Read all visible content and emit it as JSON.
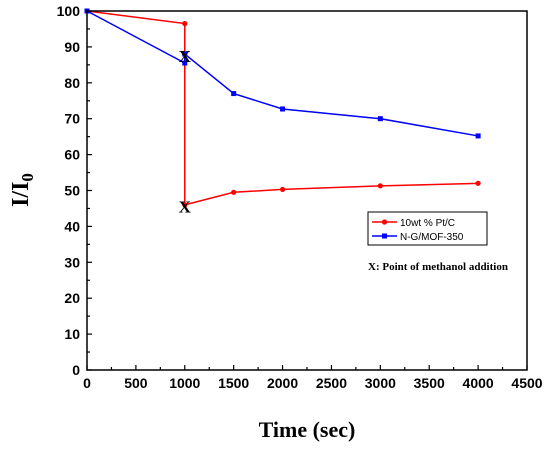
{
  "chart_data": {
    "type": "line",
    "xlabel": "Time (sec)",
    "ylabel_main": "I/I",
    "ylabel_sub": "0",
    "xlim": [
      0,
      4500
    ],
    "ylim": [
      0,
      100
    ],
    "xticks": [
      0,
      500,
      1000,
      1500,
      2000,
      2500,
      3000,
      3500,
      4000,
      4500
    ],
    "yticks": [
      0,
      10,
      20,
      30,
      40,
      50,
      60,
      70,
      80,
      90,
      100
    ],
    "legend_position": "right-middle",
    "series": [
      {
        "name": "10wt % Pt/C",
        "color": "#ff0000",
        "marker": "circle",
        "points": [
          [
            0,
            100
          ],
          [
            1000,
            96.5
          ],
          [
            1000,
            46
          ],
          [
            1500,
            49.5
          ],
          [
            2000,
            50.3
          ],
          [
            3000,
            51.3
          ],
          [
            4000,
            52
          ]
        ]
      },
      {
        "name": "N-G/MOF-350",
        "color": "#0000ff",
        "marker": "square",
        "points": [
          [
            0,
            100
          ],
          [
            1000,
            85.5
          ],
          [
            1000,
            88
          ],
          [
            1500,
            77
          ],
          [
            2000,
            72.7
          ],
          [
            3000,
            70
          ],
          [
            4000,
            65.2
          ]
        ]
      }
    ],
    "annotations": [
      {
        "text": "X",
        "x": 1000,
        "y": 87.5
      },
      {
        "text": "X",
        "x": 1000,
        "y": 45.5
      }
    ],
    "note": "X: Point of methanol addition"
  }
}
